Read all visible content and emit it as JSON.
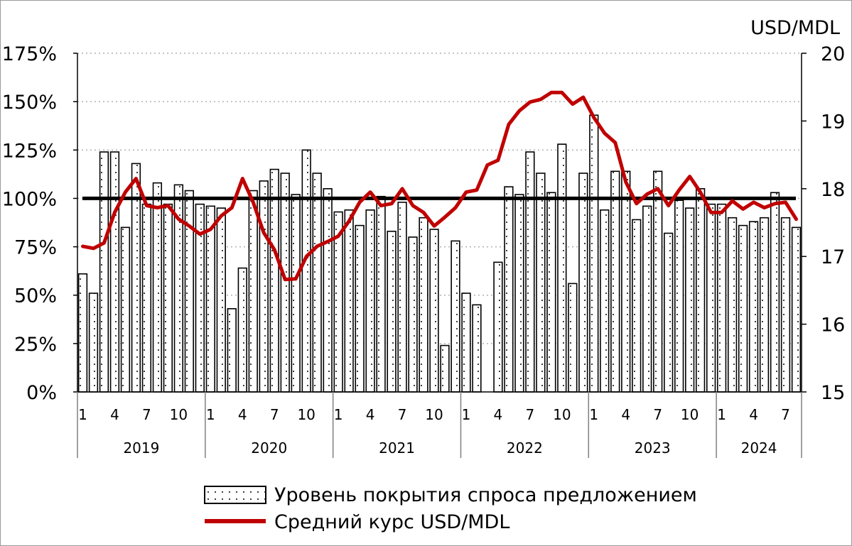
{
  "chart_data": {
    "type": "bar",
    "y_right_title": "USD/MDL",
    "ylim_left": [
      0,
      175
    ],
    "left_ticks": [
      "0%",
      "25%",
      "50%",
      "75%",
      "100%",
      "125%",
      "150%",
      "175%"
    ],
    "ylim_right": [
      15,
      20
    ],
    "right_ticks": [
      "15",
      "16",
      "17",
      "18",
      "19",
      "20"
    ],
    "reference_line": 100,
    "x_month_ticks": [
      1,
      4,
      7,
      10
    ],
    "years": [
      "2019",
      "2020",
      "2021",
      "2022",
      "2023",
      "2024"
    ],
    "months_per_year": [
      12,
      12,
      12,
      12,
      12,
      8
    ],
    "grid": "horizontal dotted",
    "legend_position": "bottom-center",
    "series": [
      {
        "name": "Уровень покрытия спроса предложением",
        "type": "bar",
        "axis": "left",
        "values": [
          61,
          51,
          124,
          124,
          85,
          118,
          97,
          108,
          97,
          107,
          104,
          97,
          96,
          95,
          43,
          64,
          104,
          109,
          115,
          113,
          102,
          125,
          113,
          105,
          93,
          94,
          86,
          94,
          101,
          83,
          98,
          80,
          90,
          84,
          24,
          78,
          51,
          45,
          0,
          67,
          106,
          102,
          124,
          113,
          103,
          128,
          56,
          113,
          143,
          94,
          114,
          114,
          89,
          96,
          114,
          82,
          99,
          95,
          105,
          97,
          97,
          90,
          86,
          88,
          90,
          103,
          90,
          85
        ]
      },
      {
        "name": "Средний курс USD/MDL",
        "type": "line",
        "axis": "right",
        "values": [
          17.15,
          17.12,
          17.2,
          17.65,
          17.95,
          18.15,
          17.75,
          17.72,
          17.75,
          17.55,
          17.45,
          17.33,
          17.4,
          17.6,
          17.72,
          18.15,
          17.8,
          17.35,
          17.1,
          16.66,
          16.67,
          17.0,
          17.15,
          17.22,
          17.3,
          17.52,
          17.8,
          17.95,
          17.75,
          17.78,
          18.0,
          17.75,
          17.65,
          17.45,
          17.58,
          17.72,
          17.95,
          17.98,
          18.35,
          18.42,
          18.95,
          19.15,
          19.28,
          19.32,
          19.42,
          19.42,
          19.25,
          19.35,
          19.05,
          18.82,
          18.68,
          18.1,
          17.78,
          17.92,
          18.0,
          17.75,
          17.98,
          18.18,
          17.95,
          17.65,
          17.65,
          17.82,
          17.7,
          17.8,
          17.72,
          17.78,
          17.8,
          17.55
        ]
      }
    ]
  },
  "legend": {
    "bar_label": "Уровень покрытия спроса предложением",
    "line_label": "Средний курс USD/MDL"
  }
}
